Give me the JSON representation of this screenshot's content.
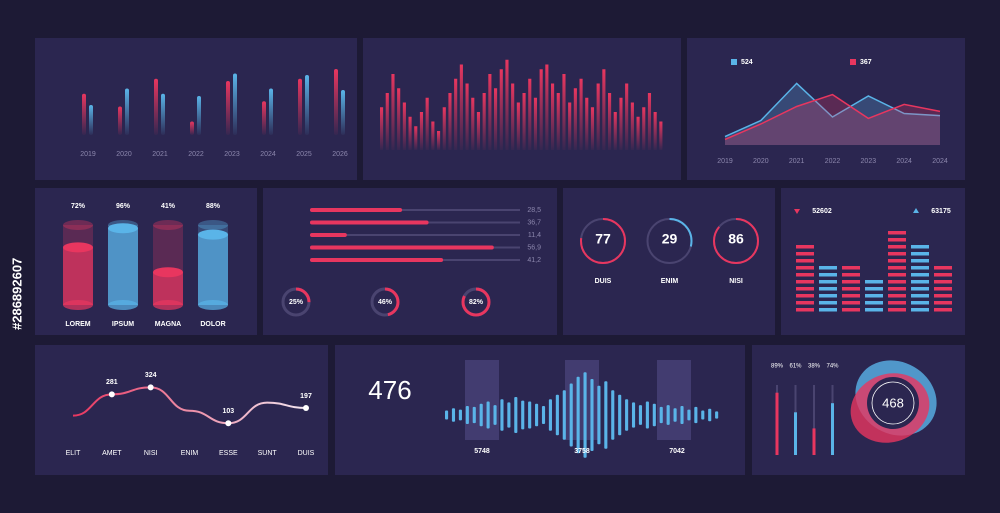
{
  "stock_id": "#286892607",
  "chart_data": [
    {
      "type": "grouped-bar",
      "categories": [
        "2019",
        "2020",
        "2021",
        "2022",
        "2023",
        "2024",
        "2025",
        "2026"
      ],
      "ylim": [
        0,
        100
      ],
      "series": [
        {
          "color": "#e8365f",
          "values": [
            55,
            38,
            75,
            18,
            72,
            45,
            75,
            88
          ]
        },
        {
          "color": "#5ab4e8",
          "values": [
            40,
            62,
            55,
            52,
            82,
            62,
            80,
            60
          ]
        }
      ]
    },
    {
      "type": "bar",
      "color": "#e8365f",
      "ylim": [
        0,
        100
      ],
      "values": [
        45,
        60,
        80,
        65,
        50,
        35,
        25,
        40,
        55,
        30,
        20,
        45,
        60,
        75,
        90,
        70,
        55,
        40,
        60,
        80,
        65,
        85,
        95,
        70,
        50,
        60,
        75,
        55,
        85,
        90,
        70,
        60,
        80,
        50,
        65,
        75,
        55,
        45,
        70,
        85,
        60,
        40,
        55,
        70,
        50,
        35,
        45,
        60,
        40,
        30
      ]
    },
    {
      "type": "line",
      "categories": [
        "2019",
        "2020",
        "2021",
        "2022",
        "2023",
        "2024",
        "2024"
      ],
      "ylim": [
        0,
        100
      ],
      "series": [
        {
          "name": 524,
          "color": "#5ab4e8",
          "values": [
            12,
            35,
            88,
            40,
            70,
            45,
            42
          ]
        },
        {
          "name": 367,
          "color": "#e8365f",
          "values": [
            8,
            30,
            55,
            72,
            38,
            58,
            48
          ]
        }
      ]
    },
    {
      "type": "cylinder",
      "categories": [
        "LOREM",
        "IPSUM",
        "MAGNA",
        "DOLOR"
      ],
      "values": [
        72,
        96,
        41,
        88
      ],
      "value_labels": [
        "72%",
        "96%",
        "41%",
        "88%"
      ],
      "colors": [
        "#e8365f",
        "#5ab4e8",
        "#e8365f",
        "#5ab4e8"
      ],
      "ylim": [
        0,
        100
      ]
    },
    {
      "type": "hbar",
      "color": "#e8365f",
      "values": [
        28.5,
        36.7,
        11.4,
        56.9,
        41.2
      ],
      "value_labels": [
        "28,5",
        "36,7",
        "11,4",
        "56,9",
        "41,2"
      ],
      "xlim": [
        0,
        65
      ]
    },
    {
      "type": "donut",
      "color": "#e8365f",
      "values": [
        25,
        46,
        82
      ],
      "value_labels": [
        "25%",
        "46%",
        "82%"
      ],
      "ylim": [
        0,
        100
      ]
    },
    {
      "type": "gauge",
      "categories": [
        "DUIS",
        "ENIM",
        "NISI"
      ],
      "values": [
        77,
        29,
        86
      ],
      "colors": [
        "#e8365f",
        "#5ab4e8",
        "#e8365f"
      ],
      "ylim": [
        0,
        100
      ]
    },
    {
      "type": "segment-bar",
      "colors": [
        "#e8365f",
        "#5ab4e8"
      ],
      "values": [
        85,
        55,
        60,
        40,
        95,
        80,
        55
      ],
      "ylim": [
        0,
        100
      ],
      "annotations": [
        {
          "label": 52602,
          "color": "#e8365f"
        },
        {
          "label": 63175,
          "color": "#5ab4e8"
        }
      ]
    },
    {
      "type": "spline",
      "categories": [
        "ELIT",
        "AMET",
        "NISI",
        "ENIM",
        "ESSE",
        "SUNT",
        "DUIS"
      ],
      "values": [
        150,
        281,
        324,
        180,
        103,
        230,
        197
      ],
      "value_labels": [
        null,
        "281",
        "324",
        null,
        "103",
        null,
        "197"
      ],
      "ylim": [
        0,
        400
      ]
    },
    {
      "type": "wave",
      "headline": 476,
      "color": "#5ab4e8",
      "ylim": [
        0,
        100
      ],
      "values": [
        10,
        15,
        12,
        20,
        18,
        25,
        30,
        22,
        35,
        28,
        40,
        32,
        30,
        25,
        20,
        35,
        45,
        55,
        70,
        85,
        95,
        80,
        65,
        75,
        55,
        45,
        35,
        28,
        22,
        30,
        25,
        18,
        22,
        15,
        20,
        12,
        18,
        10,
        14,
        8
      ],
      "annotations": [
        5748,
        3758,
        7042
      ]
    },
    {
      "type": "vbar-blob",
      "headline": 468,
      "values": [
        89,
        61,
        38,
        74
      ],
      "value_labels": [
        "89%",
        "61%",
        "38%",
        "74%"
      ],
      "colors": [
        "#e8365f",
        "#5ab4e8",
        "#e8365f",
        "#5ab4e8"
      ],
      "ylim": [
        0,
        100
      ]
    }
  ]
}
